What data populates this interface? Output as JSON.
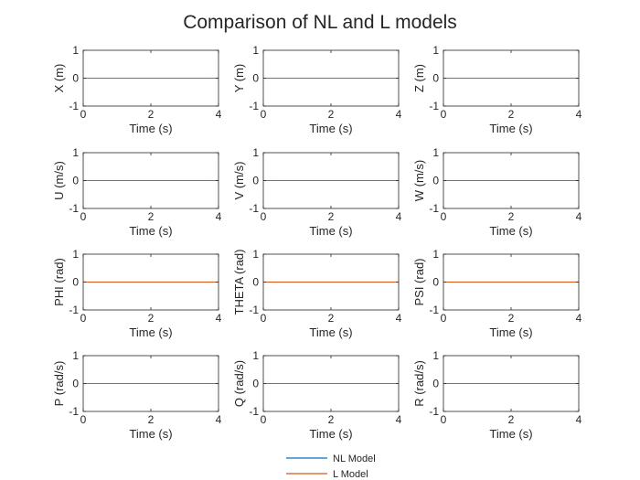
{
  "figure": {
    "title": "Comparison of NL and L models"
  },
  "legend": {
    "placement": "bottom-center",
    "entries": [
      {
        "label": "NL Model",
        "color": "#0072BD"
      },
      {
        "label": "L Model",
        "color": "#D95319"
      }
    ]
  },
  "chart_data": [
    {
      "type": "line",
      "ylabel": "X (m)",
      "xlabel": "Time (s)",
      "xlim": [
        0,
        4
      ],
      "ylim": [
        -1,
        1
      ],
      "xticks": [
        0,
        2,
        4
      ],
      "yticks": [
        -1,
        0,
        1
      ],
      "series": [
        {
          "name": "NL Model",
          "x": [
            0,
            4
          ],
          "y": [
            0,
            0
          ]
        },
        {
          "name": "L Model",
          "x": [
            0,
            4
          ],
          "y": [
            0,
            0
          ]
        }
      ]
    },
    {
      "type": "line",
      "ylabel": "Y (m)",
      "xlabel": "Time (s)",
      "xlim": [
        0,
        4
      ],
      "ylim": [
        -1,
        1
      ],
      "xticks": [
        0,
        2,
        4
      ],
      "yticks": [
        -1,
        0,
        1
      ],
      "series": [
        {
          "name": "NL Model",
          "x": [
            0,
            4
          ],
          "y": [
            0,
            0
          ]
        },
        {
          "name": "L Model",
          "x": [
            0,
            4
          ],
          "y": [
            0,
            0
          ]
        }
      ]
    },
    {
      "type": "line",
      "ylabel": "Z (m)",
      "xlabel": "Time (s)",
      "xlim": [
        0,
        4
      ],
      "ylim": [
        -1,
        1
      ],
      "xticks": [
        0,
        2,
        4
      ],
      "yticks": [
        -1,
        0,
        1
      ],
      "series": [
        {
          "name": "NL Model",
          "x": [
            0,
            4
          ],
          "y": [
            0,
            0
          ]
        },
        {
          "name": "L Model",
          "x": [
            0,
            4
          ],
          "y": [
            0,
            0
          ]
        }
      ]
    },
    {
      "type": "line",
      "ylabel": "U (m/s)",
      "xlabel": "Time (s)",
      "xlim": [
        0,
        4
      ],
      "ylim": [
        -1,
        1
      ],
      "xticks": [
        0,
        2,
        4
      ],
      "yticks": [
        -1,
        0,
        1
      ],
      "series": [
        {
          "name": "NL Model",
          "x": [
            0,
            4
          ],
          "y": [
            0,
            0
          ]
        },
        {
          "name": "L Model",
          "x": [
            0,
            4
          ],
          "y": [
            0,
            0
          ]
        }
      ]
    },
    {
      "type": "line",
      "ylabel": "V (m/s)",
      "xlabel": "Time (s)",
      "xlim": [
        0,
        4
      ],
      "ylim": [
        -1,
        1
      ],
      "xticks": [
        0,
        2,
        4
      ],
      "yticks": [
        -1,
        0,
        1
      ],
      "series": [
        {
          "name": "NL Model",
          "x": [
            0,
            4
          ],
          "y": [
            0,
            0
          ]
        },
        {
          "name": "L Model",
          "x": [
            0,
            4
          ],
          "y": [
            0,
            0
          ]
        }
      ]
    },
    {
      "type": "line",
      "ylabel": "W (m/s)",
      "xlabel": "Time (s)",
      "xlim": [
        0,
        4
      ],
      "ylim": [
        -1,
        1
      ],
      "xticks": [
        0,
        2,
        4
      ],
      "yticks": [
        -1,
        0,
        1
      ],
      "series": [
        {
          "name": "NL Model",
          "x": [
            0,
            4
          ],
          "y": [
            0,
            0
          ]
        },
        {
          "name": "L Model",
          "x": [
            0,
            4
          ],
          "y": [
            0,
            0
          ]
        }
      ]
    },
    {
      "type": "line",
      "ylabel": "PHI (rad)",
      "xlabel": "Time (s)",
      "xlim": [
        0,
        4
      ],
      "ylim": [
        -1,
        1
      ],
      "xticks": [
        0,
        2,
        4
      ],
      "yticks": [
        -1,
        0,
        1
      ],
      "series": [
        {
          "name": "NL Model",
          "x": [
            0,
            4
          ],
          "y": [
            0,
            0
          ]
        },
        {
          "name": "L Model",
          "x": [
            0,
            4
          ],
          "y": [
            0,
            0
          ]
        }
      ]
    },
    {
      "type": "line",
      "ylabel": "THETA (rad)",
      "xlabel": "Time (s)",
      "xlim": [
        0,
        4
      ],
      "ylim": [
        -1,
        1
      ],
      "xticks": [
        0,
        2,
        4
      ],
      "yticks": [
        -1,
        0,
        1
      ],
      "series": [
        {
          "name": "NL Model",
          "x": [
            0,
            4
          ],
          "y": [
            0,
            0
          ]
        },
        {
          "name": "L Model",
          "x": [
            0,
            4
          ],
          "y": [
            0,
            0
          ]
        }
      ]
    },
    {
      "type": "line",
      "ylabel": "PSI (rad)",
      "xlabel": "Time (s)",
      "xlim": [
        0,
        4
      ],
      "ylim": [
        -1,
        1
      ],
      "xticks": [
        0,
        2,
        4
      ],
      "yticks": [
        -1,
        0,
        1
      ],
      "series": [
        {
          "name": "NL Model",
          "x": [
            0,
            4
          ],
          "y": [
            0,
            0
          ]
        },
        {
          "name": "L Model",
          "x": [
            0,
            4
          ],
          "y": [
            0,
            0
          ]
        }
      ]
    },
    {
      "type": "line",
      "ylabel": "P (rad/s)",
      "xlabel": "Time (s)",
      "xlim": [
        0,
        4
      ],
      "ylim": [
        -1,
        1
      ],
      "xticks": [
        0,
        2,
        4
      ],
      "yticks": [
        -1,
        0,
        1
      ],
      "series": [
        {
          "name": "NL Model",
          "x": [
            0,
            4
          ],
          "y": [
            0,
            0
          ]
        },
        {
          "name": "L Model",
          "x": [
            0,
            4
          ],
          "y": [
            0,
            0
          ]
        }
      ]
    },
    {
      "type": "line",
      "ylabel": "Q (rad/s)",
      "xlabel": "Time (s)",
      "xlim": [
        0,
        4
      ],
      "ylim": [
        -1,
        1
      ],
      "xticks": [
        0,
        2,
        4
      ],
      "yticks": [
        -1,
        0,
        1
      ],
      "series": [
        {
          "name": "NL Model",
          "x": [
            0,
            4
          ],
          "y": [
            0,
            0
          ]
        },
        {
          "name": "L Model",
          "x": [
            0,
            4
          ],
          "y": [
            0,
            0
          ]
        }
      ]
    },
    {
      "type": "line",
      "ylabel": "R (rad/s)",
      "xlabel": "Time (s)",
      "xlim": [
        0,
        4
      ],
      "ylim": [
        -1,
        1
      ],
      "xticks": [
        0,
        2,
        4
      ],
      "yticks": [
        -1,
        0,
        1
      ],
      "series": [
        {
          "name": "NL Model",
          "x": [
            0,
            4
          ],
          "y": [
            0,
            0
          ]
        },
        {
          "name": "L Model",
          "x": [
            0,
            4
          ],
          "y": [
            0,
            0
          ]
        }
      ]
    }
  ]
}
